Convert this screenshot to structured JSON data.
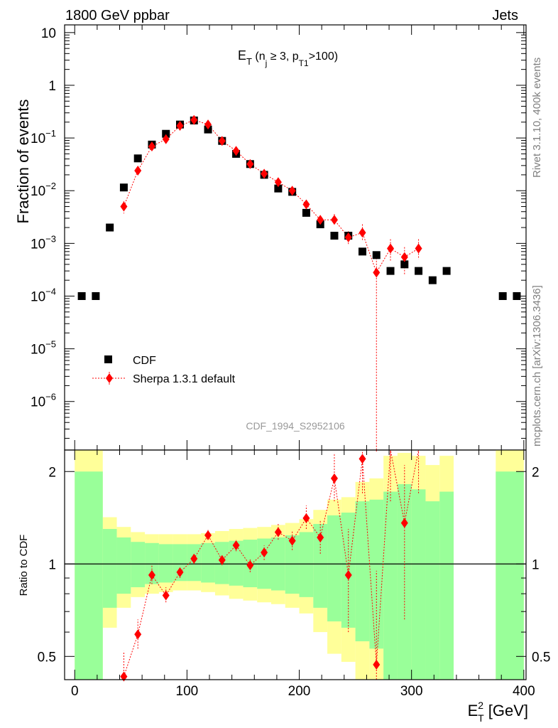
{
  "header": {
    "left": "1800 GeV ppbar",
    "right": "Jets"
  },
  "side_labels": {
    "version": "Rivet 3.1.10,  400k events",
    "site": "mcplots.cern.ch [arXiv:1306.3436]"
  },
  "watermark": "CDF_1994_S2952106",
  "colors": {
    "data": "#000000",
    "mc": "#ff0000",
    "band_inner": "#99ff99",
    "band_outer": "#ffff99"
  },
  "chart_data": [
    {
      "type": "scatter",
      "panel": "main",
      "title": "E_T (n_j ≥ 3, p_T1 >100)",
      "title_parts": {
        "base": "E",
        "sub1": "T",
        "open": " (n",
        "sub2": "j",
        "mid": " ≥ 3, p",
        "sub3": "T1",
        "close": ">100)"
      },
      "ylabel": "Fraction of events",
      "yscale": "log",
      "xlim": [
        -9,
        402
      ],
      "ylim": [
        1.2e-07,
        14
      ],
      "yticks": [
        {
          "value": 10,
          "label": "10"
        },
        {
          "value": 1,
          "label": "1"
        },
        {
          "value": 0.1,
          "label": "10",
          "exp": "−1"
        },
        {
          "value": 0.01,
          "label": "10",
          "exp": "−2"
        },
        {
          "value": 0.001,
          "label": "10",
          "exp": "−3"
        },
        {
          "value": 0.0001,
          "label": "10",
          "exp": "−4"
        },
        {
          "value": 1e-05,
          "label": "10",
          "exp": "−5"
        },
        {
          "value": 1e-06,
          "label": "10",
          "exp": "−6"
        }
      ],
      "legend_position": "bottom-left",
      "series": [
        {
          "name": "CDF",
          "marker": "square",
          "points": [
            [
              6.25,
              0.0001
            ],
            [
              18.75,
              0.0001
            ],
            [
              31.25,
              0.002
            ],
            [
              43.75,
              0.0115
            ],
            [
              56.25,
              0.041
            ],
            [
              68.75,
              0.075
            ],
            [
              81.25,
              0.12
            ],
            [
              93.75,
              0.18
            ],
            [
              106.25,
              0.215
            ],
            [
              118.75,
              0.145
            ],
            [
              131.25,
              0.088
            ],
            [
              143.75,
              0.05
            ],
            [
              156.25,
              0.032
            ],
            [
              168.75,
              0.02
            ],
            [
              181.25,
              0.011
            ],
            [
              193.75,
              0.0095
            ],
            [
              206.25,
              0.0038
            ],
            [
              218.75,
              0.0023
            ],
            [
              231.25,
              0.0014
            ],
            [
              243.75,
              0.0014
            ],
            [
              256.25,
              0.0007
            ],
            [
              268.75,
              0.0006
            ],
            [
              281.25,
              0.0003
            ],
            [
              293.75,
              0.0004
            ],
            [
              306.25,
              0.0003
            ],
            [
              318.75,
              0.0002
            ],
            [
              331.25,
              0.0003
            ],
            [
              381.25,
              0.0001
            ],
            [
              393.75,
              0.0001
            ]
          ]
        },
        {
          "name": "Sherpa 1.3.1 default",
          "marker": "diamond",
          "points": [
            [
              43.75,
              0.005,
              0.0037,
              0.0063
            ],
            [
              56.25,
              0.024,
              0.022,
              0.027
            ],
            [
              68.75,
              0.069,
              0.064,
              0.075
            ],
            [
              81.25,
              0.095,
              0.089,
              0.101
            ],
            [
              93.75,
              0.17,
              0.16,
              0.18
            ],
            [
              106.25,
              0.22,
              0.21,
              0.23
            ],
            [
              118.75,
              0.18,
              0.17,
              0.19
            ],
            [
              131.25,
              0.088,
              0.083,
              0.093
            ],
            [
              143.75,
              0.057,
              0.053,
              0.061
            ],
            [
              156.25,
              0.032,
              0.03,
              0.034
            ],
            [
              168.75,
              0.021,
              0.019,
              0.023
            ],
            [
              181.25,
              0.0145,
              0.013,
              0.016
            ],
            [
              193.75,
              0.01,
              0.009,
              0.0112
            ],
            [
              206.25,
              0.0055,
              0.0047,
              0.0064
            ],
            [
              218.75,
              0.0028,
              0.0023,
              0.0034
            ],
            [
              231.25,
              0.0028,
              0.0022,
              0.0036
            ],
            [
              243.75,
              0.0013,
              0.00095,
              0.0017
            ],
            [
              256.25,
              0.0016,
              0.0011,
              0.0023
            ],
            [
              268.75,
              0.00028,
              1.2e-07,
              0.0006
            ],
            [
              281.25,
              0.0008,
              0.00045,
              0.0012
            ],
            [
              293.75,
              0.00055,
              0.00026,
              0.00085
            ],
            [
              306.25,
              0.0008,
              0.0005,
              0.0012
            ]
          ]
        }
      ]
    },
    {
      "type": "scatter",
      "panel": "ratio",
      "ylabel": "Ratio to CDF",
      "xlabel": "E_T^2 [GeV]",
      "xlabel_parts": {
        "base": "E",
        "sup": "2",
        "sub": "T",
        "unit": " [GeV]"
      },
      "yscale": "log",
      "xlim": [
        -9,
        402
      ],
      "ylim": [
        0.42,
        2.35
      ],
      "yticks": [
        {
          "value": 0.5,
          "label": "0.5"
        },
        {
          "value": 1,
          "label": "1"
        },
        {
          "value": 2,
          "label": "2"
        }
      ],
      "xticks": [
        0,
        100,
        200,
        300,
        400
      ],
      "bands": [
        {
          "x": [
            0,
            25
          ],
          "outer": [
            0.01,
            2.6
          ],
          "inner": [
            0.01,
            2.0
          ]
        },
        {
          "x": [
            25,
            37.5
          ],
          "outer": [
            0.62,
            1.42
          ],
          "inner": [
            0.72,
            1.3
          ]
        },
        {
          "x": [
            37.5,
            50
          ],
          "outer": [
            0.72,
            1.32
          ],
          "inner": [
            0.8,
            1.22
          ]
        },
        {
          "x": [
            50,
            62.5
          ],
          "outer": [
            0.78,
            1.27
          ],
          "inner": [
            0.84,
            1.18
          ]
        },
        {
          "x": [
            62.5,
            75
          ],
          "outer": [
            0.8,
            1.25
          ],
          "inner": [
            0.86,
            1.17
          ]
        },
        {
          "x": [
            75,
            87.5
          ],
          "outer": [
            0.81,
            1.25
          ],
          "inner": [
            0.87,
            1.16
          ]
        },
        {
          "x": [
            87.5,
            100
          ],
          "outer": [
            0.82,
            1.25
          ],
          "inner": [
            0.88,
            1.16
          ]
        },
        {
          "x": [
            100,
            112.5
          ],
          "outer": [
            0.82,
            1.25
          ],
          "inner": [
            0.88,
            1.16
          ]
        },
        {
          "x": [
            112.5,
            125
          ],
          "outer": [
            0.81,
            1.26
          ],
          "inner": [
            0.87,
            1.17
          ]
        },
        {
          "x": [
            125,
            137.5
          ],
          "outer": [
            0.79,
            1.28
          ],
          "inner": [
            0.86,
            1.18
          ]
        },
        {
          "x": [
            137.5,
            150
          ],
          "outer": [
            0.77,
            1.3
          ],
          "inner": [
            0.85,
            1.19
          ]
        },
        {
          "x": [
            150,
            162.5
          ],
          "outer": [
            0.76,
            1.31
          ],
          "inner": [
            0.84,
            1.2
          ]
        },
        {
          "x": [
            162.5,
            175
          ],
          "outer": [
            0.75,
            1.32
          ],
          "inner": [
            0.83,
            1.21
          ]
        },
        {
          "x": [
            175,
            187.5
          ],
          "outer": [
            0.74,
            1.34
          ],
          "inner": [
            0.82,
            1.22
          ]
        },
        {
          "x": [
            187.5,
            200
          ],
          "outer": [
            0.72,
            1.36
          ],
          "inner": [
            0.8,
            1.24
          ]
        },
        {
          "x": [
            200,
            212.5
          ],
          "outer": [
            0.69,
            1.4
          ],
          "inner": [
            0.78,
            1.27
          ]
        },
        {
          "x": [
            212.5,
            225
          ],
          "outer": [
            0.6,
            1.5
          ],
          "inner": [
            0.72,
            1.35
          ]
        },
        {
          "x": [
            225,
            237.5
          ],
          "outer": [
            0.51,
            1.62
          ],
          "inner": [
            0.65,
            1.44
          ]
        },
        {
          "x": [
            237.5,
            250
          ],
          "outer": [
            0.48,
            1.65
          ],
          "inner": [
            0.62,
            1.47
          ]
        },
        {
          "x": [
            250,
            262.5
          ],
          "outer": [
            0.41,
            1.85
          ],
          "inner": [
            0.56,
            1.6
          ]
        },
        {
          "x": [
            262.5,
            275
          ],
          "outer": [
            0.41,
            1.9
          ],
          "inner": [
            0.53,
            1.62
          ]
        },
        {
          "x": [
            275,
            287.5
          ],
          "outer": [
            0.01,
            2.25
          ],
          "inner": [
            0.4,
            1.72
          ]
        },
        {
          "x": [
            287.5,
            300
          ],
          "outer": [
            0.01,
            2.3
          ],
          "inner": [
            0.33,
            1.82
          ]
        },
        {
          "x": [
            300,
            312.5
          ],
          "outer": [
            0.01,
            2.25
          ],
          "inner": [
            0.41,
            1.75
          ]
        },
        {
          "x": [
            312.5,
            325
          ],
          "outer": [
            0.01,
            2.1
          ],
          "inner": [
            0.33,
            1.6
          ]
        },
        {
          "x": [
            325,
            337.5
          ],
          "outer": [
            0.01,
            2.25
          ],
          "inner": [
            0.01,
            1.72
          ]
        },
        {
          "x": [
            375,
            400
          ],
          "outer": [
            0.01,
            2.6
          ],
          "inner": [
            0.01,
            2.0
          ]
        }
      ],
      "reference_line": 1,
      "series": [
        {
          "name": "Sherpa 1.3.1 default",
          "marker": "diamond",
          "points": [
            [
              43.75,
              0.43,
              0.38,
              0.52
            ],
            [
              56.25,
              0.59,
              0.53,
              0.66
            ],
            [
              68.75,
              0.92,
              0.86,
              0.99
            ],
            [
              81.25,
              0.79,
              0.75,
              0.84
            ],
            [
              93.75,
              0.94,
              0.9,
              0.98
            ],
            [
              106.25,
              1.04,
              1.0,
              1.08
            ],
            [
              118.75,
              1.24,
              1.2,
              1.29
            ],
            [
              131.25,
              1.03,
              0.99,
              1.07
            ],
            [
              143.75,
              1.15,
              1.1,
              1.2
            ],
            [
              156.25,
              0.99,
              0.94,
              1.04
            ],
            [
              168.75,
              1.09,
              1.03,
              1.15
            ],
            [
              181.25,
              1.27,
              1.2,
              1.35
            ],
            [
              193.75,
              1.19,
              1.11,
              1.28
            ],
            [
              206.25,
              1.41,
              1.3,
              1.55
            ],
            [
              218.75,
              1.22,
              1.08,
              1.38
            ],
            [
              231.25,
              1.9,
              1.6,
              2.3
            ],
            [
              243.75,
              0.92,
              0.6,
              1.3
            ],
            [
              256.25,
              2.2,
              1.7,
              2.35
            ],
            [
              268.75,
              0.47,
              0.42,
              0.95
            ],
            [
              281.25,
              2.6,
              1.6,
              3.5
            ],
            [
              293.75,
              1.36,
              0.66,
              2.1
            ],
            [
              306.25,
              2.6,
              1.7,
              3.5
            ]
          ]
        }
      ]
    }
  ]
}
